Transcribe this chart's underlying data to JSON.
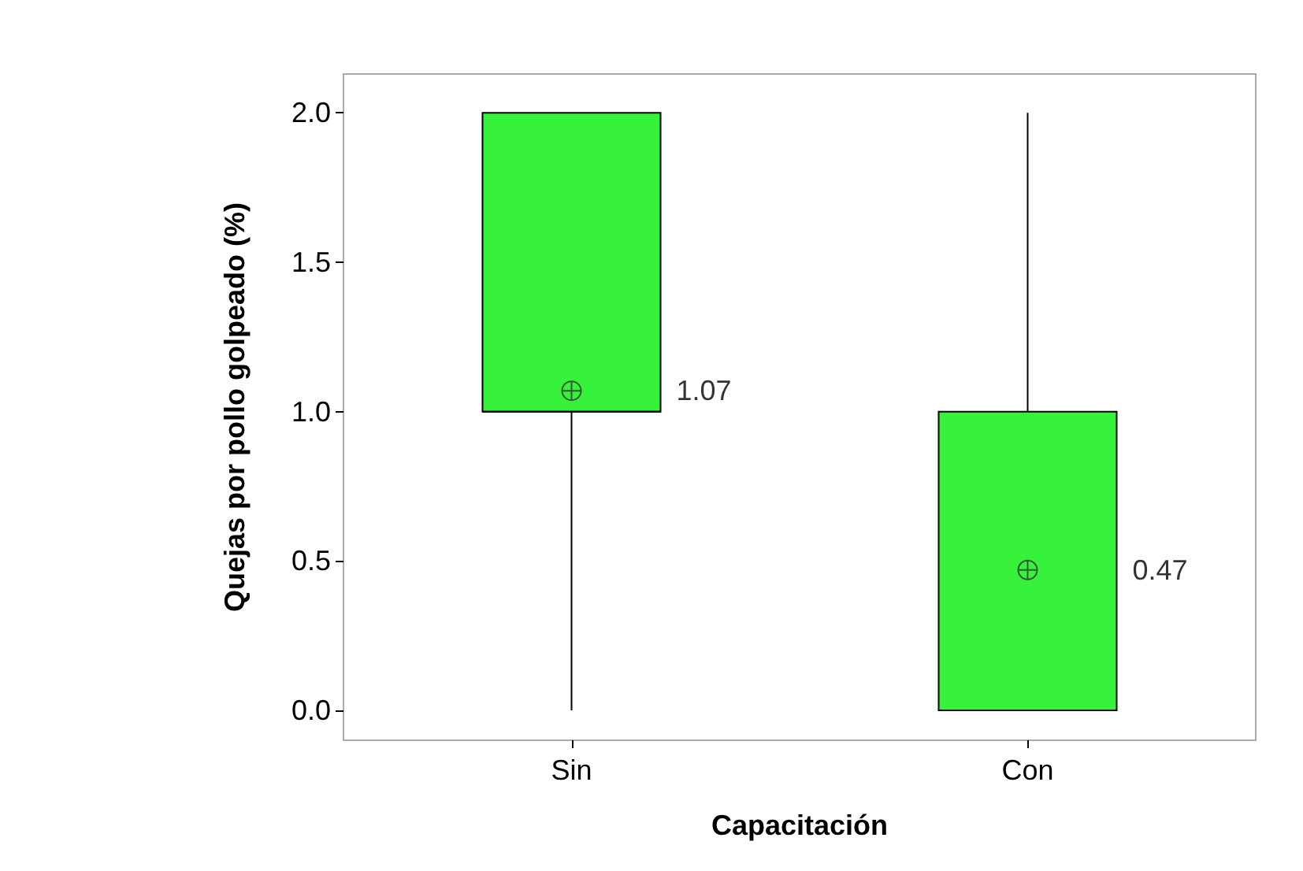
{
  "chart_data": {
    "type": "box",
    "xlabel": "Capacitación",
    "ylabel": "Quejas por pollo golpeado (%)",
    "categories": [
      "Sin",
      "Con"
    ],
    "boxes": [
      {
        "low": 0,
        "q1": 1,
        "median": 1,
        "q3": 2,
        "high": 2,
        "mean": 1.07
      },
      {
        "low": 0,
        "q1": 0,
        "median": 0,
        "q3": 1,
        "high": 2,
        "mean": 0.47
      }
    ],
    "color": "#36f23a",
    "ylim": [
      -0.1,
      2.13
    ],
    "yticks": [
      {
        "value": 0,
        "label": "0.0"
      },
      {
        "value": 0.5,
        "label": "0.5"
      },
      {
        "value": 1,
        "label": "1.0"
      },
      {
        "value": 1.5,
        "label": "1.5"
      },
      {
        "value": 2,
        "label": "2.0"
      }
    ],
    "grid": false,
    "annotations": [
      "1.07",
      "0.47"
    ]
  }
}
